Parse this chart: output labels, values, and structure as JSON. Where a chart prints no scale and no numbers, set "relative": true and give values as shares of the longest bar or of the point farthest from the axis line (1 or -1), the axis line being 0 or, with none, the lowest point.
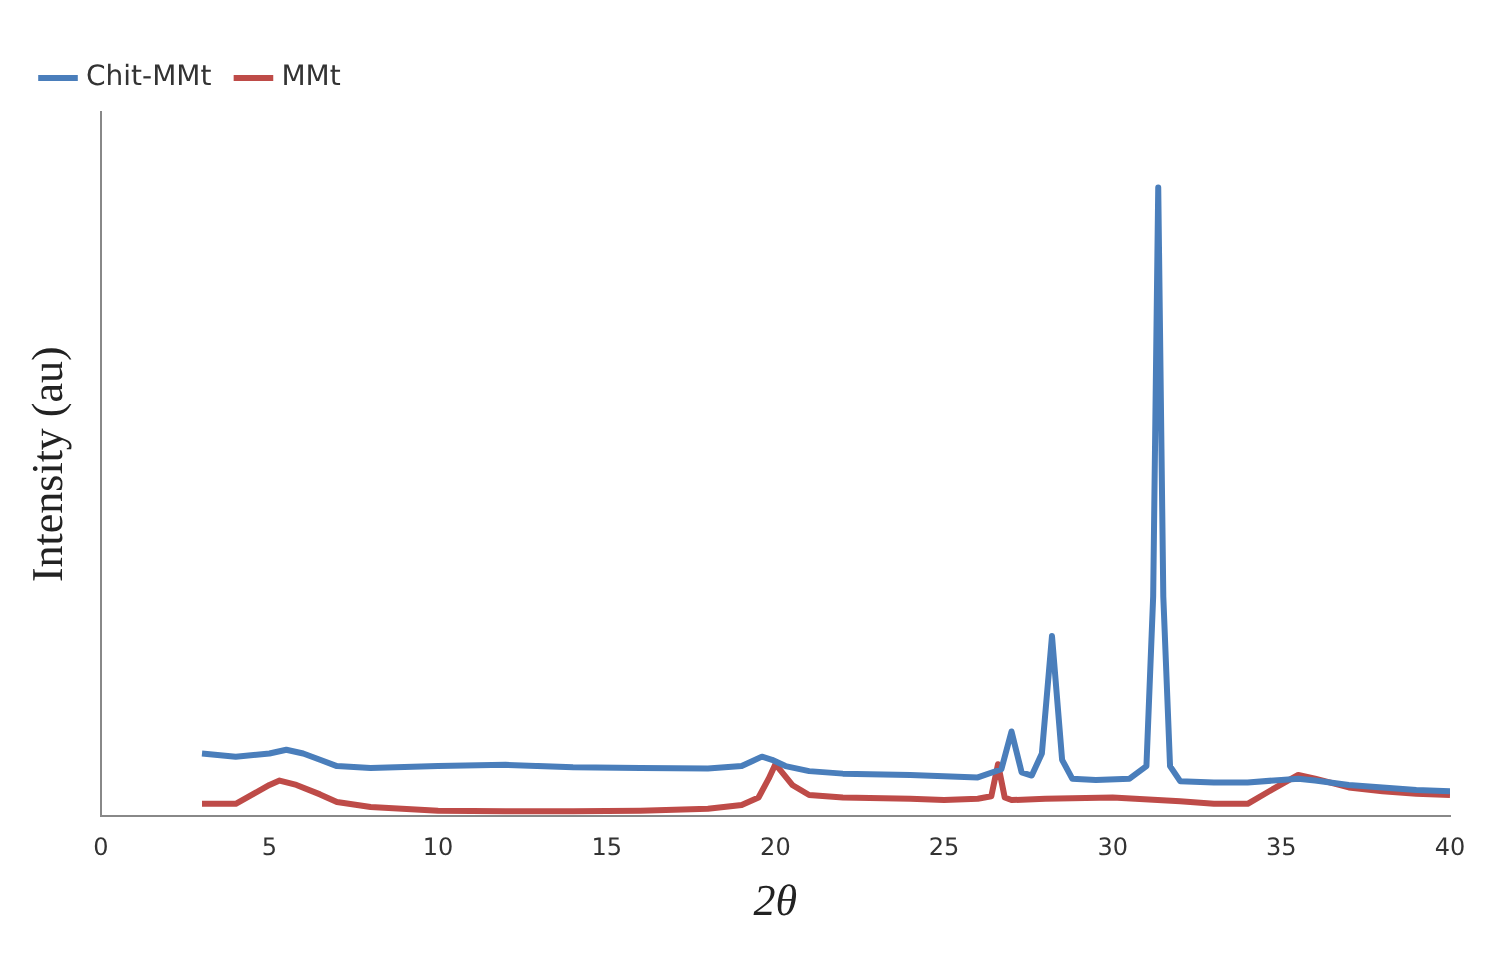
{
  "chart_data": {
    "type": "line",
    "relative": true,
    "xlabel": "2θ",
    "ylabel": "Intensity (au)",
    "xlim": [
      0,
      40
    ],
    "xticks": [
      0,
      5,
      10,
      15,
      20,
      25,
      30,
      35,
      40
    ],
    "legend": "top left",
    "grid": false,
    "marker": "none",
    "series": [
      {
        "name": "Chit-MMt",
        "color": "#4a7ebb",
        "x": [
          3,
          4,
          5,
          5.5,
          6,
          6.5,
          7,
          8,
          10,
          12,
          14,
          16,
          18,
          19,
          19.6,
          19.9,
          20.3,
          21,
          22,
          24,
          26,
          26.7,
          27,
          27.3,
          27.6,
          27.9,
          28.2,
          28.5,
          28.8,
          29.5,
          30.5,
          31,
          31.2,
          31.35,
          31.5,
          31.7,
          32,
          33,
          34,
          35,
          35.5,
          36,
          37,
          38,
          39,
          40
        ],
        "values": [
          0.1,
          0.095,
          0.1,
          0.106,
          0.1,
          0.09,
          0.08,
          0.077,
          0.08,
          0.082,
          0.078,
          0.077,
          0.076,
          0.08,
          0.095,
          0.09,
          0.08,
          0.072,
          0.068,
          0.066,
          0.062,
          0.075,
          0.135,
          0.07,
          0.065,
          0.1,
          0.287,
          0.09,
          0.06,
          0.058,
          0.06,
          0.08,
          0.35,
          1,
          0.35,
          0.08,
          0.056,
          0.054,
          0.054,
          0.058,
          0.06,
          0.057,
          0.05,
          0.046,
          0.042,
          0.04
        ]
      },
      {
        "name": "MMt",
        "color": "#be4b48",
        "x": [
          3,
          4,
          4.5,
          5,
          5.3,
          5.8,
          6.5,
          7,
          8,
          10,
          12,
          14,
          16,
          18,
          19,
          19.5,
          19.8,
          20,
          20.5,
          21,
          22,
          24,
          25,
          26,
          26.4,
          26.6,
          26.8,
          27,
          28,
          30,
          32,
          33,
          34,
          34.8,
          35.5,
          36,
          37,
          38,
          39,
          40
        ],
        "values": [
          0.02,
          0.02,
          0.035,
          0.05,
          0.057,
          0.05,
          0.035,
          0.023,
          0.015,
          0.009,
          0.008,
          0.008,
          0.009,
          0.012,
          0.018,
          0.03,
          0.06,
          0.083,
          0.05,
          0.034,
          0.03,
          0.028,
          0.026,
          0.028,
          0.032,
          0.083,
          0.03,
          0.026,
          0.028,
          0.03,
          0.024,
          0.02,
          0.02,
          0.045,
          0.066,
          0.06,
          0.046,
          0.04,
          0.036,
          0.034
        ]
      }
    ]
  }
}
